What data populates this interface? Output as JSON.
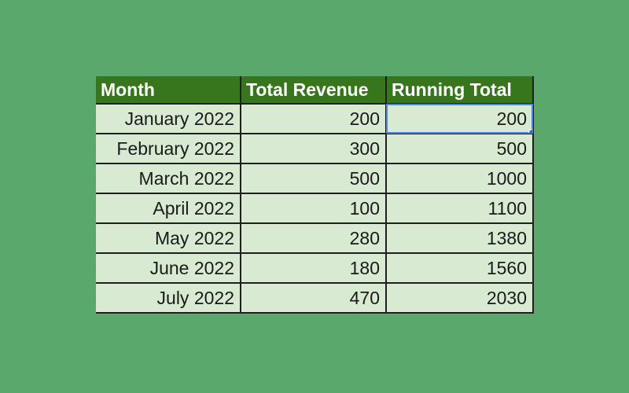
{
  "sheet": {
    "headers": [
      "Month",
      "Total Revenue",
      "Running Total"
    ],
    "rows": [
      [
        "January 2022",
        "200",
        "200"
      ],
      [
        "February 2022",
        "300",
        "500"
      ],
      [
        "March 2022",
        "500",
        "1000"
      ],
      [
        "April 2022",
        "100",
        "1100"
      ],
      [
        "May 2022",
        "280",
        "1380"
      ],
      [
        "June 2022",
        "180",
        "1560"
      ],
      [
        "July 2022",
        "470",
        "2030"
      ]
    ],
    "selected_cell": "C2"
  },
  "colors": {
    "background": "#5ba86d",
    "header_fill": "#38761d",
    "row_fill": "#d9ead3",
    "selection": "#4a86e8"
  }
}
